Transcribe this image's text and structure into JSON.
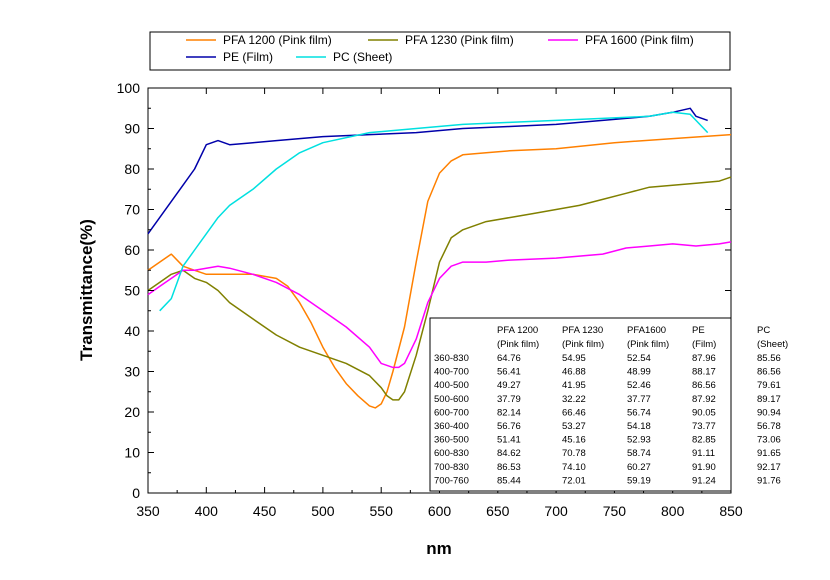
{
  "chart_data": {
    "type": "line",
    "xlabel": "nm",
    "ylabel": "Transmittance(%)",
    "xlim": [
      350,
      850
    ],
    "ylim": [
      0,
      100
    ],
    "xticks": [
      "350",
      "400",
      "450",
      "500",
      "550",
      "600",
      "650",
      "700",
      "750",
      "800",
      "850"
    ],
    "yticks": [
      "0",
      "10",
      "20",
      "30",
      "40",
      "50",
      "60",
      "70",
      "80",
      "90",
      "100"
    ],
    "grid": false,
    "legend_position": "top",
    "series": [
      {
        "name": "PFA 1200 (Pink film)",
        "color": "#ff8000",
        "x": [
          350,
          360,
          370,
          380,
          390,
          400,
          420,
          440,
          460,
          470,
          480,
          490,
          500,
          510,
          520,
          530,
          540,
          545,
          550,
          555,
          560,
          570,
          580,
          590,
          600,
          610,
          620,
          640,
          660,
          700,
          750,
          800,
          850
        ],
        "y": [
          55,
          57,
          59,
          56,
          55,
          54,
          54,
          54,
          53,
          51,
          47,
          42,
          36,
          31,
          27,
          24,
          21.5,
          21,
          22,
          25,
          30,
          41,
          57,
          72,
          79,
          82,
          83.5,
          84,
          84.5,
          85,
          86.5,
          87.5,
          88.5
        ]
      },
      {
        "name": "PFA 1230 (Pink film)",
        "color": "#808000",
        "x": [
          350,
          360,
          370,
          380,
          390,
          400,
          410,
          420,
          440,
          460,
          480,
          500,
          520,
          540,
          550,
          555,
          560,
          565,
          570,
          580,
          590,
          600,
          610,
          620,
          640,
          660,
          680,
          700,
          720,
          740,
          760,
          780,
          800,
          820,
          840,
          850
        ],
        "y": [
          50,
          52,
          54,
          55,
          53,
          52,
          50,
          47,
          43,
          39,
          36,
          34,
          32,
          29,
          26,
          24,
          23,
          23,
          25,
          34,
          45,
          57,
          63,
          65,
          67,
          68,
          69,
          70,
          71,
          72.5,
          74,
          75.5,
          76,
          76.5,
          77,
          78
        ]
      },
      {
        "name": "PFA 1600 (Pink film)",
        "color": "#ff00ff",
        "x": [
          350,
          360,
          370,
          380,
          390,
          400,
          410,
          420,
          440,
          460,
          480,
          500,
          520,
          540,
          550,
          560,
          565,
          570,
          580,
          590,
          600,
          610,
          620,
          640,
          660,
          700,
          740,
          760,
          780,
          800,
          820,
          840,
          850
        ],
        "y": [
          49,
          51,
          53,
          55,
          55,
          55.5,
          56,
          55.5,
          54,
          52,
          49,
          45,
          41,
          36,
          32,
          31,
          31,
          32,
          38,
          47,
          53,
          56,
          57,
          57,
          57.5,
          58,
          59,
          60.5,
          61,
          61.5,
          61,
          61.5,
          62
        ]
      },
      {
        "name": "PE (Film)",
        "color": "#0000aa",
        "x": [
          350,
          360,
          370,
          380,
          390,
          400,
          410,
          420,
          440,
          460,
          480,
          500,
          540,
          580,
          620,
          660,
          700,
          740,
          780,
          800,
          815,
          820,
          830
        ],
        "y": [
          64,
          68,
          72,
          76,
          80,
          86,
          87,
          86,
          86.5,
          87,
          87.5,
          88,
          88.5,
          89,
          90,
          90.5,
          91,
          92,
          93,
          94,
          95,
          93,
          92
        ]
      },
      {
        "name": "PC (Sheet)",
        "color": "#00e0e0",
        "x": [
          360,
          370,
          375,
          380,
          390,
          400,
          410,
          420,
          440,
          460,
          480,
          500,
          540,
          580,
          620,
          660,
          700,
          740,
          780,
          800,
          815,
          820,
          830
        ],
        "y": [
          45,
          48,
          52,
          56,
          60,
          64,
          68,
          71,
          75,
          80,
          84,
          86.5,
          89,
          90,
          91,
          91.5,
          92,
          92.5,
          93,
          94,
          93.5,
          92,
          89
        ]
      }
    ],
    "table": {
      "header1": [
        "",
        "PFA 1200",
        "PFA 1230",
        "PFA1600",
        "PE",
        "PC"
      ],
      "header2": [
        "",
        "(Pink film)",
        "(Pink film)",
        "(Pink film)",
        "(Film)",
        "(Sheet)"
      ],
      "rows": [
        [
          "360-830",
          "64.76",
          "54.95",
          "52.54",
          "87.96",
          "85.56"
        ],
        [
          "400-700",
          "56.41",
          "46.88",
          "48.99",
          "88.17",
          "86.56"
        ],
        [
          "400-500",
          "49.27",
          "41.95",
          "52.46",
          "86.56",
          "79.61"
        ],
        [
          "500-600",
          "37.79",
          "32.22",
          "37.77",
          "87.92",
          "89.17"
        ],
        [
          "600-700",
          "82.14",
          "66.46",
          "56.74",
          "90.05",
          "90.94"
        ],
        [
          "360-400",
          "56.76",
          "53.27",
          "54.18",
          "73.77",
          "56.78"
        ],
        [
          "360-500",
          "51.41",
          "45.16",
          "52.93",
          "82.85",
          "73.06"
        ],
        [
          "600-830",
          "84.62",
          "70.78",
          "58.74",
          "91.11",
          "91.65"
        ],
        [
          "700-830",
          "86.53",
          "74.10",
          "60.27",
          "91.90",
          "92.17"
        ],
        [
          "700-760",
          "85.44",
          "72.01",
          "59.19",
          "91.24",
          "91.76"
        ]
      ]
    }
  }
}
